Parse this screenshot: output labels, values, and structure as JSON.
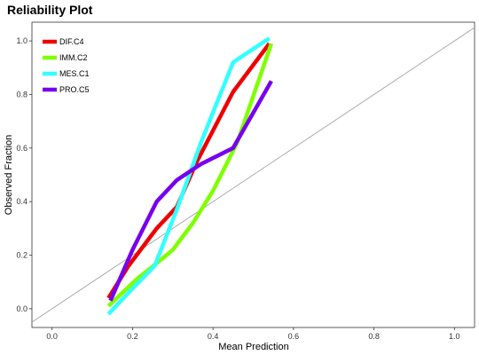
{
  "chart_data": {
    "type": "line",
    "title": "Reliability Plot",
    "xlabel": "Mean Prediction",
    "ylabel": "Observed Fraction",
    "xlim": [
      -0.05,
      1.05
    ],
    "ylim": [
      -0.07,
      1.07
    ],
    "x_ticks": [
      "0.0",
      "0.2",
      "0.4",
      "0.6",
      "0.8",
      "1.0"
    ],
    "y_ticks": [
      "0.0",
      "0.2",
      "0.4",
      "0.6",
      "0.8",
      "1.0"
    ],
    "grid": false,
    "legend_position": "top-left",
    "reference_line": {
      "x": [
        -0.05,
        1.05
      ],
      "y": [
        -0.05,
        1.05
      ],
      "color": "#aaaaaa"
    },
    "series": [
      {
        "name": "DIF.C4",
        "color": "#ee0000",
        "x": [
          0.14,
          0.19,
          0.26,
          0.31,
          0.36,
          0.45,
          0.54
        ],
        "y": [
          0.04,
          0.16,
          0.3,
          0.38,
          0.55,
          0.81,
          0.99
        ]
      },
      {
        "name": "IMM.C2",
        "color": "#7fff00",
        "x": [
          0.14,
          0.21,
          0.26,
          0.3,
          0.35,
          0.4,
          0.46,
          0.545
        ],
        "y": [
          0.01,
          0.11,
          0.17,
          0.22,
          0.32,
          0.44,
          0.62,
          0.99
        ]
      },
      {
        "name": "MES.C1",
        "color": "#33ffff",
        "x": [
          0.14,
          0.19,
          0.255,
          0.31,
          0.37,
          0.45,
          0.54
        ],
        "y": [
          -0.02,
          0.06,
          0.16,
          0.37,
          0.62,
          0.92,
          1.01
        ]
      },
      {
        "name": "PRO.C5",
        "color": "#7700ee",
        "x": [
          0.145,
          0.2,
          0.26,
          0.31,
          0.37,
          0.45,
          0.545
        ],
        "y": [
          0.03,
          0.22,
          0.4,
          0.48,
          0.54,
          0.6,
          0.85
        ]
      }
    ]
  }
}
